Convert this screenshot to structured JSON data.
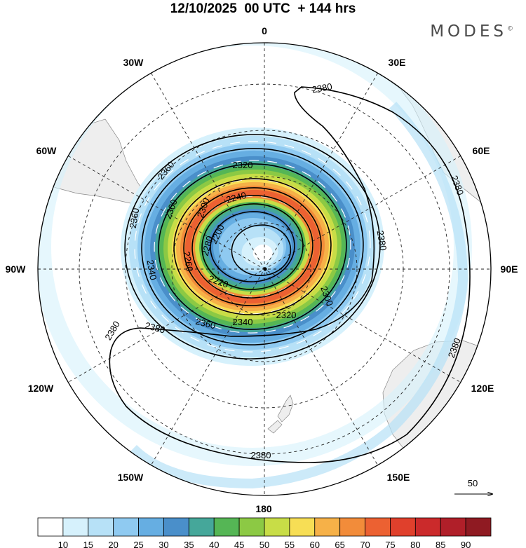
{
  "title": "12/10/2025  00 UTC  + 144 hrs",
  "brand": "MODES",
  "brand_mark": "©",
  "longitude_labels": [
    "0",
    "30E",
    "60E",
    "90E",
    "120E",
    "150E",
    "180",
    "150W",
    "120W",
    "90W",
    "60W",
    "30W"
  ],
  "contours": {
    "c2380": [
      "2380",
      "2380",
      "2380",
      "2380",
      "2380",
      "2380",
      "2380"
    ],
    "c2360": [
      "2360",
      "2360",
      "2360"
    ],
    "c2340": [
      "2340",
      "2340"
    ],
    "c2320": [
      "2320",
      "2320"
    ],
    "c2300": [
      "2300",
      "2300",
      "2300"
    ],
    "c2280": [
      "2280"
    ],
    "c2260": [
      "2260"
    ],
    "c2240": [
      "2240"
    ],
    "c2220": [
      "2220"
    ],
    "c2200": [
      "2200"
    ]
  },
  "vector_reference": "50",
  "colorbar": {
    "labels": [
      "10",
      "15",
      "20",
      "25",
      "30",
      "35",
      "40",
      "45",
      "50",
      "55",
      "60",
      "65",
      "70",
      "75",
      "80",
      "85",
      "90"
    ],
    "colors": [
      "#ffffff",
      "#d6f1fc",
      "#b7e1f7",
      "#8fcaf1",
      "#66aee2",
      "#4a8fca",
      "#45a79a",
      "#55b655",
      "#8cc944",
      "#c8dd47",
      "#f7de55",
      "#f6b148",
      "#f28c3a",
      "#ec6132",
      "#e0402c",
      "#cb2a2b",
      "#b01f29",
      "#8f1a22"
    ]
  },
  "colors": {
    "land": "#eeeeee",
    "ocean": "#ffffff",
    "contour": "#000000",
    "grid": "#222222"
  }
}
